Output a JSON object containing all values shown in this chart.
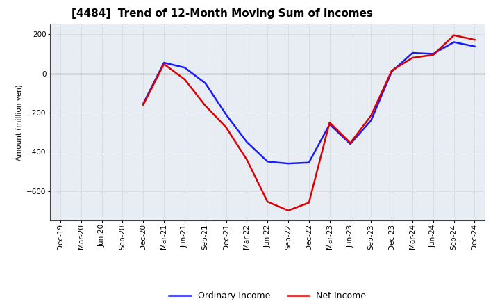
{
  "title": "[4484]  Trend of 12-Month Moving Sum of Incomes",
  "ylabel": "Amount (million yen)",
  "ylim": [
    -750,
    250
  ],
  "yticks": [
    -600,
    -400,
    -200,
    0,
    200
  ],
  "background_color": "#ffffff",
  "grid_color": "#b0b8c8",
  "x_labels": [
    "Dec-19",
    "Mar-20",
    "Jun-20",
    "Sep-20",
    "Dec-20",
    "Mar-21",
    "Jun-21",
    "Sep-21",
    "Dec-21",
    "Mar-22",
    "Jun-22",
    "Sep-22",
    "Dec-22",
    "Mar-23",
    "Jun-23",
    "Sep-23",
    "Dec-23",
    "Mar-24",
    "Jun-24",
    "Sep-24",
    "Dec-24"
  ],
  "ordinary_income": [
    null,
    null,
    null,
    null,
    -155,
    55,
    30,
    -50,
    -210,
    -350,
    -450,
    -460,
    -455,
    -260,
    -360,
    -240,
    10,
    105,
    100,
    160,
    138
  ],
  "net_income": [
    null,
    null,
    null,
    null,
    -160,
    48,
    -30,
    -165,
    -275,
    -440,
    -655,
    -700,
    -660,
    -250,
    -355,
    -215,
    15,
    80,
    95,
    195,
    172
  ],
  "ordinary_color": "#1a1aff",
  "net_color": "#dd0000",
  "line_width": 1.8,
  "title_fontsize": 11,
  "legend_fontsize": 9,
  "tick_fontsize": 7.5
}
